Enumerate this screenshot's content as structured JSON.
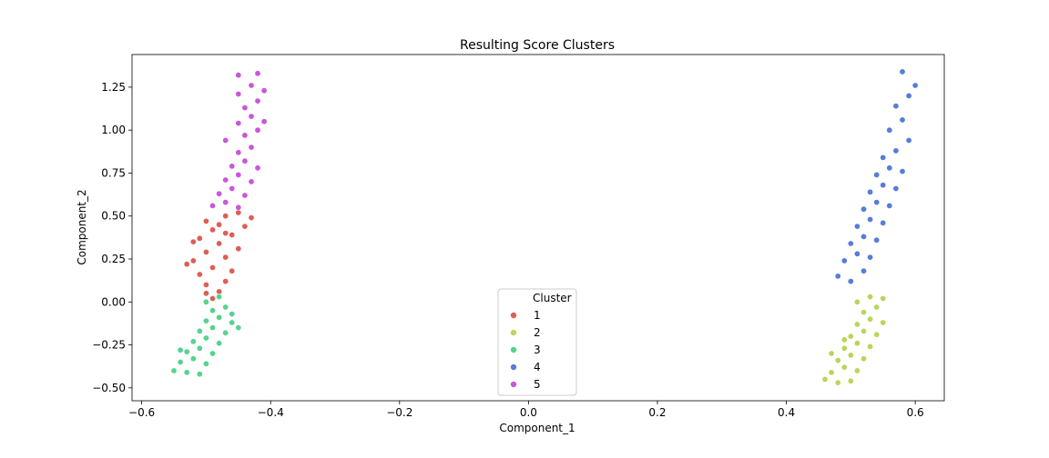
{
  "chart_data": {
    "type": "scatter",
    "title": "Resulting Score Clusters",
    "xlabel": "Component_1",
    "ylabel": "Component_2",
    "xlim": [
      -0.615,
      0.645
    ],
    "ylim": [
      -0.575,
      1.44
    ],
    "xticks": [
      -0.6,
      -0.4,
      -0.2,
      0.0,
      0.2,
      0.4,
      0.6
    ],
    "xtick_labels": [
      "−0.6",
      "−0.4",
      "−0.2",
      "0.0",
      "0.2",
      "0.4",
      "0.6"
    ],
    "yticks": [
      -0.5,
      -0.25,
      0.0,
      0.25,
      0.5,
      0.75,
      1.0,
      1.25
    ],
    "ytick_labels": [
      "−0.50",
      "−0.25",
      "0.00",
      "0.25",
      "0.50",
      "0.75",
      "1.00",
      "1.25"
    ],
    "grid": false,
    "legend": {
      "title": "Cluster",
      "placement": "lower-center"
    },
    "series": [
      {
        "name": "1",
        "color": "#db5f57",
        "points": [
          [
            -0.49,
            0.02
          ],
          [
            -0.48,
            0.06
          ],
          [
            -0.5,
            0.1
          ],
          [
            -0.47,
            0.12
          ],
          [
            -0.51,
            0.16
          ],
          [
            -0.46,
            0.18
          ],
          [
            -0.49,
            0.2
          ],
          [
            -0.52,
            0.24
          ],
          [
            -0.47,
            0.26
          ],
          [
            -0.5,
            0.29
          ],
          [
            -0.45,
            0.31
          ],
          [
            -0.48,
            0.34
          ],
          [
            -0.51,
            0.37
          ],
          [
            -0.46,
            0.39
          ],
          [
            -0.49,
            0.42
          ],
          [
            -0.44,
            0.44
          ],
          [
            -0.5,
            0.47
          ],
          [
            -0.47,
            0.5
          ],
          [
            -0.45,
            0.52
          ],
          [
            -0.52,
            0.35
          ],
          [
            -0.53,
            0.22
          ],
          [
            -0.48,
            0.45
          ],
          [
            -0.43,
            0.49
          ],
          [
            -0.5,
            0.05
          ],
          [
            -0.47,
            0.4
          ]
        ]
      },
      {
        "name": "2",
        "color": "#b9d65b",
        "points": [
          [
            0.46,
            -0.45
          ],
          [
            0.48,
            -0.47
          ],
          [
            0.5,
            -0.46
          ],
          [
            0.47,
            -0.41
          ],
          [
            0.49,
            -0.38
          ],
          [
            0.51,
            -0.4
          ],
          [
            0.48,
            -0.34
          ],
          [
            0.5,
            -0.31
          ],
          [
            0.52,
            -0.33
          ],
          [
            0.49,
            -0.27
          ],
          [
            0.51,
            -0.24
          ],
          [
            0.53,
            -0.26
          ],
          [
            0.5,
            -0.2
          ],
          [
            0.52,
            -0.17
          ],
          [
            0.54,
            -0.19
          ],
          [
            0.51,
            -0.13
          ],
          [
            0.53,
            -0.1
          ],
          [
            0.55,
            -0.12
          ],
          [
            0.52,
            -0.06
          ],
          [
            0.54,
            -0.03
          ],
          [
            0.51,
            0.0
          ],
          [
            0.53,
            0.03
          ],
          [
            0.55,
            0.02
          ],
          [
            0.47,
            -0.3
          ],
          [
            0.49,
            -0.22
          ]
        ]
      },
      {
        "name": "3",
        "color": "#57d38f",
        "points": [
          [
            -0.55,
            -0.4
          ],
          [
            -0.53,
            -0.41
          ],
          [
            -0.51,
            -0.42
          ],
          [
            -0.54,
            -0.35
          ],
          [
            -0.52,
            -0.33
          ],
          [
            -0.5,
            -0.36
          ],
          [
            -0.53,
            -0.29
          ],
          [
            -0.51,
            -0.27
          ],
          [
            -0.49,
            -0.3
          ],
          [
            -0.52,
            -0.23
          ],
          [
            -0.5,
            -0.21
          ],
          [
            -0.48,
            -0.24
          ],
          [
            -0.51,
            -0.17
          ],
          [
            -0.49,
            -0.15
          ],
          [
            -0.47,
            -0.18
          ],
          [
            -0.5,
            -0.11
          ],
          [
            -0.48,
            -0.09
          ],
          [
            -0.46,
            -0.12
          ],
          [
            -0.49,
            -0.05
          ],
          [
            -0.47,
            -0.03
          ],
          [
            -0.5,
            0.0
          ],
          [
            -0.48,
            0.03
          ],
          [
            -0.46,
            -0.07
          ],
          [
            -0.45,
            -0.15
          ],
          [
            -0.54,
            -0.28
          ]
        ]
      },
      {
        "name": "4",
        "color": "#577cdb",
        "points": [
          [
            0.48,
            0.15
          ],
          [
            0.5,
            0.12
          ],
          [
            0.52,
            0.18
          ],
          [
            0.49,
            0.24
          ],
          [
            0.51,
            0.28
          ],
          [
            0.53,
            0.26
          ],
          [
            0.5,
            0.34
          ],
          [
            0.52,
            0.38
          ],
          [
            0.54,
            0.36
          ],
          [
            0.51,
            0.44
          ],
          [
            0.53,
            0.48
          ],
          [
            0.55,
            0.46
          ],
          [
            0.52,
            0.54
          ],
          [
            0.54,
            0.58
          ],
          [
            0.56,
            0.56
          ],
          [
            0.53,
            0.64
          ],
          [
            0.55,
            0.68
          ],
          [
            0.57,
            0.66
          ],
          [
            0.54,
            0.74
          ],
          [
            0.56,
            0.78
          ],
          [
            0.58,
            0.76
          ],
          [
            0.55,
            0.84
          ],
          [
            0.57,
            0.88
          ],
          [
            0.59,
            0.94
          ],
          [
            0.56,
            1.0
          ],
          [
            0.58,
            1.06
          ],
          [
            0.57,
            1.14
          ],
          [
            0.59,
            1.2
          ],
          [
            0.6,
            1.26
          ],
          [
            0.58,
            1.34
          ]
        ]
      },
      {
        "name": "5",
        "color": "#c957db",
        "points": [
          [
            -0.49,
            0.56
          ],
          [
            -0.47,
            0.58
          ],
          [
            -0.45,
            0.55
          ],
          [
            -0.48,
            0.63
          ],
          [
            -0.46,
            0.66
          ],
          [
            -0.44,
            0.62
          ],
          [
            -0.47,
            0.71
          ],
          [
            -0.45,
            0.74
          ],
          [
            -0.43,
            0.7
          ],
          [
            -0.46,
            0.79
          ],
          [
            -0.44,
            0.82
          ],
          [
            -0.42,
            0.78
          ],
          [
            -0.45,
            0.87
          ],
          [
            -0.43,
            0.9
          ],
          [
            -0.47,
            0.94
          ],
          [
            -0.44,
            0.97
          ],
          [
            -0.42,
            1.0
          ],
          [
            -0.45,
            1.04
          ],
          [
            -0.43,
            1.08
          ],
          [
            -0.41,
            1.05
          ],
          [
            -0.44,
            1.13
          ],
          [
            -0.42,
            1.17
          ],
          [
            -0.45,
            1.21
          ],
          [
            -0.43,
            1.26
          ],
          [
            -0.41,
            1.23
          ],
          [
            -0.45,
            1.32
          ],
          [
            -0.42,
            1.33
          ]
        ]
      }
    ]
  }
}
